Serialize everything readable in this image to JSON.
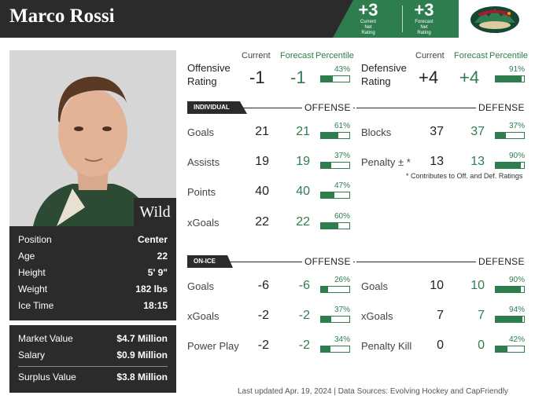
{
  "player": {
    "name": "Marco Rossi",
    "team": "Wild"
  },
  "net_rating": [
    {
      "value": "+3",
      "label1": "Current",
      "label2": "Net",
      "label3": "Rating"
    },
    {
      "value": "+3",
      "label1": "Forecast",
      "label2": "Net",
      "label3": "Rating"
    }
  ],
  "bio": [
    {
      "key": "Position",
      "value": "Center"
    },
    {
      "key": "Age",
      "value": "22"
    },
    {
      "key": "Height",
      "value": "5' 9\""
    },
    {
      "key": "Weight",
      "value": "182 lbs"
    },
    {
      "key": "Ice Time",
      "value": "18:15"
    }
  ],
  "money": [
    {
      "key": "Market Value",
      "value": "$4.7 Million"
    },
    {
      "key": "Salary",
      "value": "$0.9 Million"
    },
    {
      "key": "Surplus Value",
      "value": "$3.8 Million"
    }
  ],
  "headers": {
    "current": "Current",
    "forecast": "Forecast",
    "percentile": "Percentile"
  },
  "ratings": {
    "offensive": {
      "label1": "Offensive",
      "label2": "Rating",
      "current": "-1",
      "forecast": "-1",
      "percentile": "43%",
      "pct": 43
    },
    "defensive": {
      "label1": "Defensive",
      "label2": "Rating",
      "current": "+4",
      "forecast": "+4",
      "percentile": "91%",
      "pct": 91
    }
  },
  "individual": {
    "tag": "INDIVIDUAL",
    "offense_label": "OFFENSE",
    "defense_label": "DEFENSE",
    "offense": [
      {
        "label": "Goals",
        "current": "21",
        "forecast": "21",
        "percentile": "61%",
        "pct": 61
      },
      {
        "label": "Assists",
        "current": "19",
        "forecast": "19",
        "percentile": "37%",
        "pct": 37
      },
      {
        "label": "Points",
        "current": "40",
        "forecast": "40",
        "percentile": "47%",
        "pct": 47
      },
      {
        "label": "xGoals",
        "current": "22",
        "forecast": "22",
        "percentile": "60%",
        "pct": 60
      }
    ],
    "defense": [
      {
        "label": "Blocks",
        "current": "37",
        "forecast": "37",
        "percentile": "37%",
        "pct": 37
      },
      {
        "label": "Penalty ± *",
        "current": "13",
        "forecast": "13",
        "percentile": "90%",
        "pct": 90
      }
    ],
    "note": "* Contributes to Off. and Def. Ratings"
  },
  "on_ice": {
    "tag": "ON-ICE",
    "offense_label": "OFFENSE",
    "defense_label": "DEFENSE",
    "offense": [
      {
        "label": "Goals",
        "current": "-6",
        "forecast": "-6",
        "percentile": "26%",
        "pct": 26
      },
      {
        "label": "xGoals",
        "current": "-2",
        "forecast": "-2",
        "percentile": "37%",
        "pct": 37
      },
      {
        "label": "Power Play",
        "current": "-2",
        "forecast": "-2",
        "percentile": "34%",
        "pct": 34
      }
    ],
    "defense": [
      {
        "label": "Goals",
        "current": "10",
        "forecast": "10",
        "percentile": "90%",
        "pct": 90
      },
      {
        "label": "xGoals",
        "current": "7",
        "forecast": "7",
        "percentile": "94%",
        "pct": 94
      },
      {
        "label": "Penalty Kill",
        "current": "0",
        "forecast": "0",
        "percentile": "42%",
        "pct": 42
      }
    ]
  },
  "footer": "Last updated Apr. 19, 2024 | Data Sources: Evolving Hockey and CapFriendly",
  "colors": {
    "accent": "#2e7d4f",
    "dark": "#2b2b2b"
  }
}
